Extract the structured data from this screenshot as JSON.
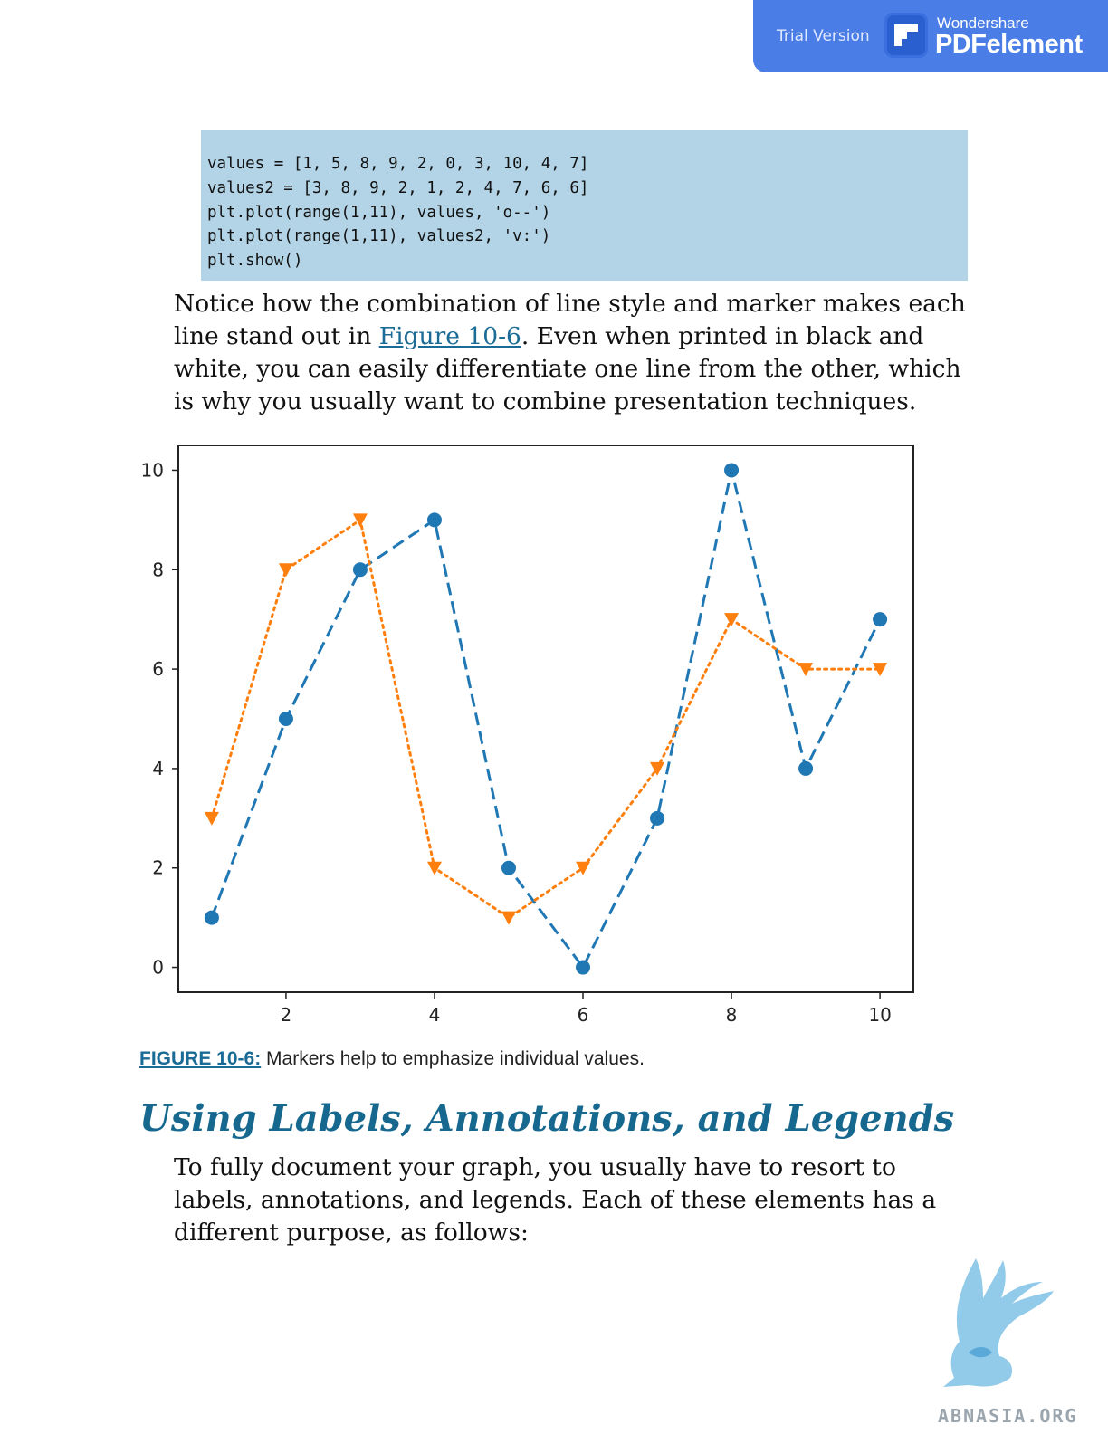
{
  "banner": {
    "trial_label": "Trial Version",
    "brand_top": "Wondershare",
    "brand_main": "PDFelement",
    "color": "#4a7ee6"
  },
  "code": {
    "lines": [
      "values = [1, 5, 8, 9, 2, 0, 3, 10, 4, 7]",
      "values2 = [3, 8, 9, 2, 1, 2, 4, 7, 6, 6]",
      "plt.plot(range(1,11), values, 'o--')",
      "plt.plot(range(1,11), values2, 'v:')",
      "plt.show()"
    ],
    "background": "#b3d4e6"
  },
  "paragraph1": {
    "before_link": "Notice how the combination of line style and marker makes each line stand out in ",
    "link": "Figure 10-6",
    "after_link": ". Even when printed in black and white, you can easily differentiate one line from the other, which is why you usually want to combine presentation techniques."
  },
  "figure": {
    "label": "FIGURE 10-6:",
    "text": " Markers help to emphasize individual values."
  },
  "section": {
    "heading": "Using Labels, Annotations, and Legends"
  },
  "paragraph2": {
    "text": "To fully document your graph, you usually have to resort to labels, annotations, and legends. Each of these elements has a different purpose, as follows:"
  },
  "watermark": {
    "text": "ABNASIA.ORG"
  },
  "chart_data": {
    "type": "line",
    "x": [
      1,
      2,
      3,
      4,
      5,
      6,
      7,
      8,
      9,
      10
    ],
    "series": [
      {
        "values": [
          1,
          5,
          8,
          9,
          2,
          0,
          3,
          10,
          4,
          7
        ],
        "color": "#1f77b4",
        "marker": "circle",
        "linestyle": "dashed"
      },
      {
        "values": [
          3,
          8,
          9,
          2,
          1,
          2,
          4,
          7,
          6,
          6
        ],
        "color": "#ff7f0e",
        "marker": "triangle-down",
        "linestyle": "dotted"
      }
    ],
    "xticks": [
      2,
      4,
      6,
      8,
      10
    ],
    "yticks": [
      0,
      2,
      4,
      6,
      8,
      10
    ],
    "xlim": [
      0.55,
      10.45
    ],
    "ylim": [
      -0.5,
      10.5
    ],
    "grid": false,
    "title": "",
    "xlabel": "",
    "ylabel": ""
  }
}
